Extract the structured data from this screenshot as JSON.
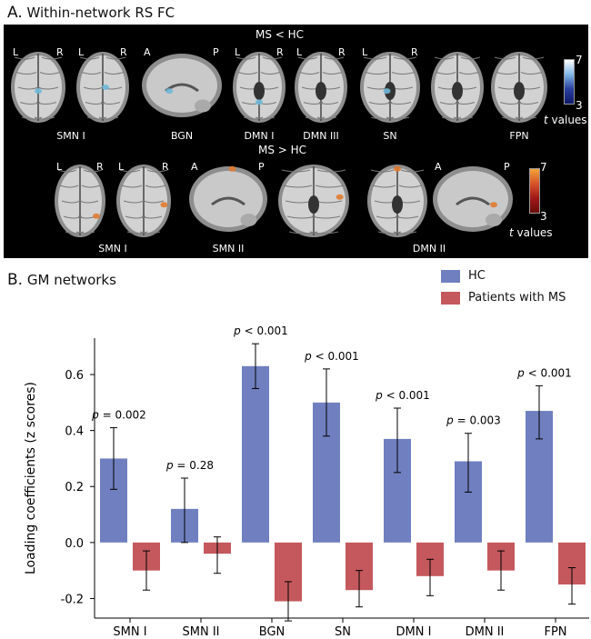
{
  "panel_a": {
    "letter": "A.",
    "title": "Within-network RS FC",
    "row1_title": "MS < HC",
    "row2_title": "MS > HC",
    "row1_labels": [
      "SMN I",
      "BGN",
      "DMN I",
      "DMN III",
      "SN",
      "FPN"
    ],
    "row2_labels": [
      "SMN I",
      "SMN II",
      "DMN II"
    ],
    "orient": {
      "L": "L",
      "R": "R",
      "A": "A",
      "P": "P"
    },
    "cbar_top": {
      "max": "7",
      "min": "3",
      "t": "t",
      "values": " values",
      "colors": [
        "#ffffff",
        "#7fb6e6",
        "#2a3f9e",
        "#101a6a"
      ]
    },
    "cbar_bottom": {
      "max": "7",
      "min": "3",
      "t": "t",
      "values": " values",
      "colors": [
        "#f2a33a",
        "#d8542a",
        "#a01818",
        "#6a0c0c"
      ]
    }
  },
  "panel_b": {
    "letter": "B.",
    "title": "GM networks",
    "legend": [
      {
        "label": "HC",
        "color": "#6f7fbf"
      },
      {
        "label": "Patients with MS",
        "color": "#c4585d"
      }
    ]
  },
  "chart_data": {
    "type": "bar",
    "categories": [
      "SMN I",
      "SMN II",
      "BGN",
      "SN",
      "DMN I",
      "DMN II",
      "FPN"
    ],
    "series": [
      {
        "name": "HC",
        "color": "#6f7fbf",
        "values": [
          0.3,
          0.12,
          0.63,
          0.5,
          0.37,
          0.29,
          0.47
        ],
        "err_low": [
          0.19,
          0.0,
          0.55,
          0.38,
          0.25,
          0.18,
          0.37
        ],
        "err_high": [
          0.41,
          0.23,
          0.71,
          0.62,
          0.48,
          0.39,
          0.56
        ]
      },
      {
        "name": "Patients with MS",
        "color": "#c4585d",
        "values": [
          -0.1,
          -0.04,
          -0.21,
          -0.17,
          -0.12,
          -0.1,
          -0.15
        ],
        "err_low": [
          -0.17,
          -0.11,
          -0.28,
          -0.23,
          -0.19,
          -0.17,
          -0.22
        ],
        "err_high": [
          -0.03,
          0.02,
          -0.14,
          -0.1,
          -0.06,
          -0.03,
          -0.09
        ]
      }
    ],
    "p_labels": [
      "p = 0.002",
      "p = 0.28",
      "p < 0.001",
      "p < 0.001",
      "p < 0.001",
      "p = 0.003",
      "p < 0.001"
    ],
    "ylabel": "Loading coefficients (z scores)",
    "yticks": [
      "0.6",
      "0.4",
      "0.2",
      "0.0",
      "-0.2"
    ],
    "ytick_values": [
      0.6,
      0.4,
      0.2,
      0.0,
      -0.2
    ],
    "ylim": [
      -0.27,
      0.73
    ]
  }
}
